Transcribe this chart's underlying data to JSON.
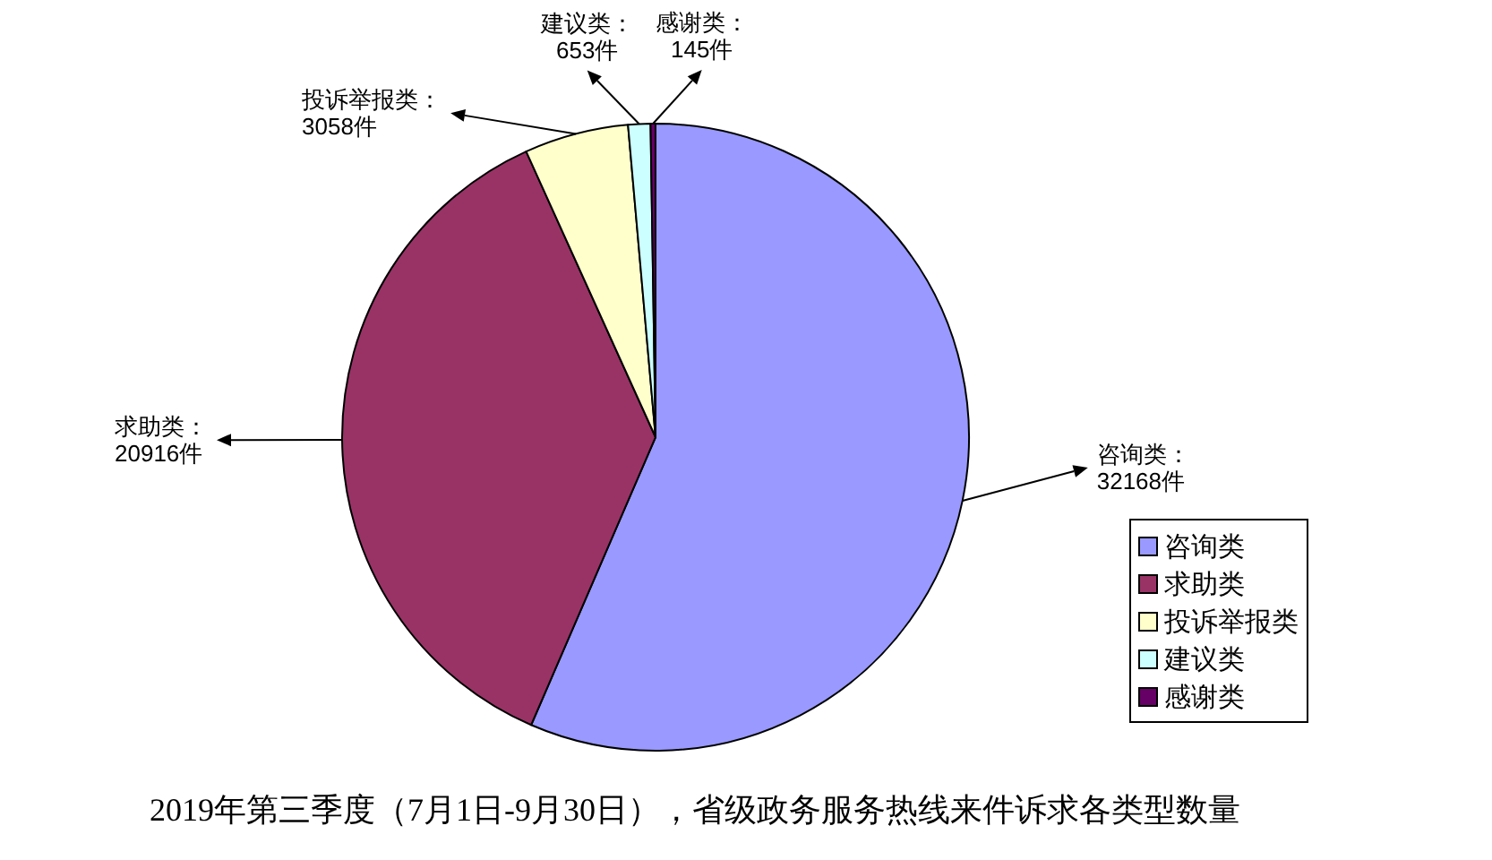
{
  "chart_data": {
    "type": "pie",
    "title": "2019年第三季度（7月1日-9月30日），省级政务服务热线来件诉求各类型数量",
    "categories": [
      "咨询类",
      "求助类",
      "投诉举报类",
      "建议类",
      "感谢类"
    ],
    "values": [
      32168,
      20916,
      3058,
      653,
      145
    ],
    "colors": [
      "#9999ff",
      "#993366",
      "#ffffcc",
      "#ccffff",
      "#660066"
    ],
    "value_labels": [
      "咨询类：32168件",
      "求助类：20916件",
      "投诉举报类：3058件",
      "建议类：653件",
      "感谢类：145件"
    ],
    "legend": "bottom right"
  }
}
